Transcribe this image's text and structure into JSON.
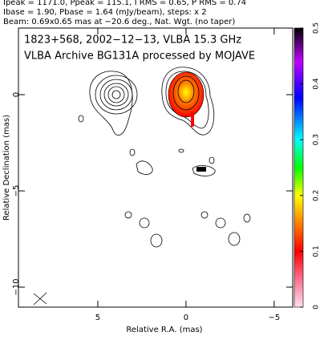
{
  "chart_data": {
    "type": "contour",
    "header": [
      "Ipeak = 1171.0, Ppeak = 115.1, I RMS = 0.65, P RMS = 0.74",
      "Ibase = 1.90, Pbase = 1.64 (mJy/beam), steps: x 2",
      "Beam: 0.69x0.65 mas at −20.6 deg., Nat. Wgt. (no taper)"
    ],
    "title": [
      "1823+568, 2002−12−13, VLBA 15.3 GHz",
      "VLBA Archive BG131A processed by MOJAVE"
    ],
    "xlabel": "Relative R.A. (mas)",
    "ylabel": "Relative Declination (mas)",
    "xlim": [
      9.5,
      -6.05
    ],
    "xticks": [
      5,
      0,
      {
        "value": -5,
        "label": "−5"
      }
    ],
    "ylim": [
      3.46,
      -11.04
    ],
    "yticks": [
      0,
      {
        "value": -5,
        "label": "−5"
      },
      {
        "value": -10,
        "label": "−10"
      }
    ],
    "clim": [
      0,
      0.5
    ],
    "cticks": [
      0,
      0.1,
      0.2,
      0.3,
      0.4,
      0.5
    ]
  }
}
